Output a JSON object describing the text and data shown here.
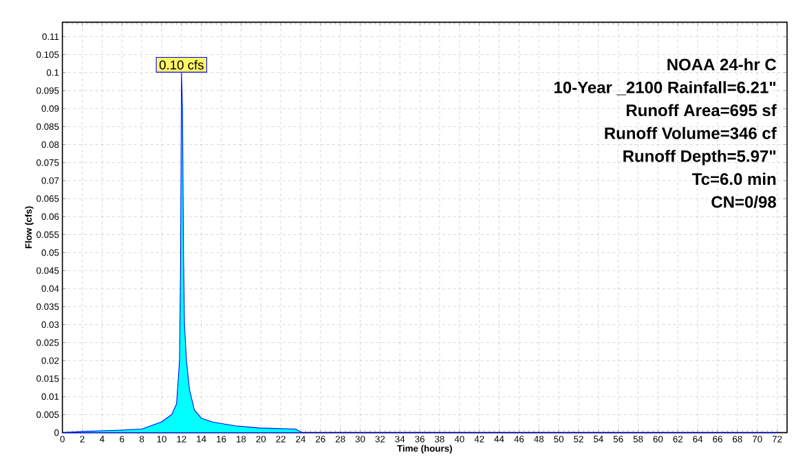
{
  "chart_data": {
    "type": "area",
    "xlabel": "Time  (hours)",
    "ylabel": "Flow  (cfs)",
    "x": [
      0,
      2,
      4,
      6,
      8,
      9,
      10,
      11,
      11.5,
      11.8,
      11.9,
      12,
      12.1,
      12.2,
      12.3,
      12.5,
      12.8,
      13.3,
      14,
      15.2,
      17.4,
      19.8,
      23.5,
      24,
      24.2,
      72
    ],
    "series": [
      {
        "color": "#00ffff",
        "values": [
          0,
          0.0003,
          0.0005,
          0.0007,
          0.001,
          0.002,
          0.003,
          0.005,
          0.008,
          0.02,
          0.045,
          0.1,
          0.09,
          0.05,
          0.03,
          0.02,
          0.012,
          0.0063,
          0.004,
          0.0029,
          0.0019,
          0.0013,
          0.001,
          0.0002,
          0,
          0
        ]
      }
    ],
    "xlim": [
      0,
      73
    ],
    "ylim": [
      0,
      0.114
    ],
    "xticks": [
      0,
      2,
      4,
      6,
      8,
      10,
      12,
      14,
      16,
      18,
      20,
      22,
      24,
      26,
      28,
      30,
      32,
      34,
      36,
      38,
      40,
      42,
      44,
      46,
      48,
      50,
      52,
      54,
      56,
      58,
      60,
      62,
      64,
      66,
      68,
      70,
      72
    ],
    "yticks": [
      0,
      0.005,
      0.01,
      0.015,
      0.02,
      0.025,
      0.03,
      0.035,
      0.04,
      0.045,
      0.05,
      0.055,
      0.06,
      0.065,
      0.07,
      0.075,
      0.08,
      0.085,
      0.09,
      0.095,
      0.1,
      0.105,
      0.11
    ],
    "grid": true,
    "annotations": [
      {
        "text": "0.10 cfs",
        "x": 12,
        "y": 0.1
      },
      "NOAA 24-hr C",
      "10-Year _2100 Rainfall=6.21\"",
      "Runoff Area=695 sf",
      "Runoff Volume=346 cf",
      "Runoff Depth=5.97\"",
      "Tc=6.0 min",
      "CN=0/98"
    ]
  }
}
